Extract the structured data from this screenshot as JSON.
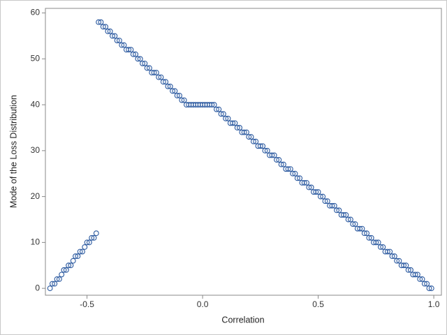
{
  "chart_data": {
    "type": "scatter",
    "xlabel": "Correlation",
    "ylabel": "Mode of the Loss Distribution",
    "marker_color": "#2c5aa0",
    "xlim": [
      -0.68,
      1.033
    ],
    "ylim": [
      -1.5,
      61
    ],
    "xticks": [
      -0.5,
      {
        "value": 0,
        "label": "0.0"
      },
      0.5,
      {
        "value": 1,
        "label": "1.0"
      }
    ],
    "yticks": [
      0,
      10,
      20,
      30,
      40,
      50,
      60
    ],
    "x": [
      -0.66,
      -0.65,
      -0.64,
      -0.63,
      -0.62,
      -0.61,
      -0.6,
      -0.59,
      -0.58,
      -0.57,
      -0.56,
      -0.55,
      -0.54,
      -0.53,
      -0.52,
      -0.51,
      -0.5,
      -0.49,
      -0.48,
      -0.47,
      -0.46,
      -0.45,
      -0.44,
      -0.43,
      -0.42,
      -0.41,
      -0.4,
      -0.39,
      -0.38,
      -0.37,
      -0.36,
      -0.35,
      -0.34,
      -0.33,
      -0.32,
      -0.31,
      -0.3,
      -0.29,
      -0.28,
      -0.27,
      -0.26,
      -0.25,
      -0.24,
      -0.23,
      -0.22,
      -0.21,
      -0.2,
      -0.19,
      -0.18,
      -0.17,
      -0.16,
      -0.15,
      -0.14,
      -0.13,
      -0.12,
      -0.11,
      -0.1,
      -0.09,
      -0.08,
      -0.07,
      -0.06,
      -0.05,
      -0.04,
      -0.03,
      -0.02,
      -0.01,
      0,
      0.01,
      0.02,
      0.03,
      0.04,
      0.05,
      0.06,
      0.07,
      0.08,
      0.09,
      0.1,
      0.11,
      0.12,
      0.13,
      0.14,
      0.15,
      0.16,
      0.17,
      0.18,
      0.19,
      0.2,
      0.21,
      0.22,
      0.23,
      0.24,
      0.25,
      0.26,
      0.27,
      0.28,
      0.29,
      0.3,
      0.31,
      0.32,
      0.33,
      0.34,
      0.35,
      0.36,
      0.37,
      0.38,
      0.39,
      0.4,
      0.41,
      0.42,
      0.43,
      0.44,
      0.45,
      0.46,
      0.47,
      0.48,
      0.49,
      0.5,
      0.51,
      0.52,
      0.53,
      0.54,
      0.55,
      0.56,
      0.57,
      0.58,
      0.59,
      0.6,
      0.61,
      0.62,
      0.63,
      0.64,
      0.65,
      0.66,
      0.67,
      0.68,
      0.69,
      0.7,
      0.71,
      0.72,
      0.73,
      0.74,
      0.75,
      0.76,
      0.77,
      0.78,
      0.79,
      0.8,
      0.81,
      0.82,
      0.83,
      0.84,
      0.85,
      0.86,
      0.87,
      0.88,
      0.89,
      0.9,
      0.91,
      0.92,
      0.93,
      0.94,
      0.95,
      0.96,
      0.97,
      0.98,
      0.99
    ],
    "values": [
      0,
      1,
      1,
      2,
      2,
      3,
      4,
      4,
      5,
      5,
      6,
      7,
      7,
      8,
      8,
      9,
      10,
      10,
      11,
      11,
      12,
      58,
      58,
      57,
      57,
      56,
      56,
      55,
      55,
      54,
      54,
      53,
      53,
      52,
      52,
      52,
      51,
      51,
      50,
      50,
      49,
      49,
      48,
      48,
      47,
      47,
      47,
      46,
      46,
      45,
      45,
      44,
      44,
      43,
      43,
      42,
      42,
      41,
      41,
      40,
      40,
      40,
      40,
      40,
      40,
      40,
      40,
      40,
      40,
      40,
      40,
      40,
      39,
      39,
      38,
      38,
      37,
      37,
      36,
      36,
      36,
      35,
      35,
      34,
      34,
      34,
      33,
      33,
      32,
      32,
      31,
      31,
      31,
      30,
      30,
      29,
      29,
      29,
      28,
      28,
      27,
      27,
      26,
      26,
      26,
      25,
      25,
      24,
      24,
      23,
      23,
      23,
      22,
      22,
      21,
      21,
      21,
      20,
      20,
      19,
      19,
      18,
      18,
      18,
      17,
      17,
      16,
      16,
      16,
      15,
      15,
      14,
      14,
      13,
      13,
      13,
      12,
      12,
      11,
      11,
      10,
      10,
      10,
      9,
      9,
      8,
      8,
      8,
      7,
      7,
      6,
      6,
      5,
      5,
      5,
      4,
      4,
      3,
      3,
      3,
      2,
      2,
      1,
      1,
      0,
      0
    ]
  }
}
